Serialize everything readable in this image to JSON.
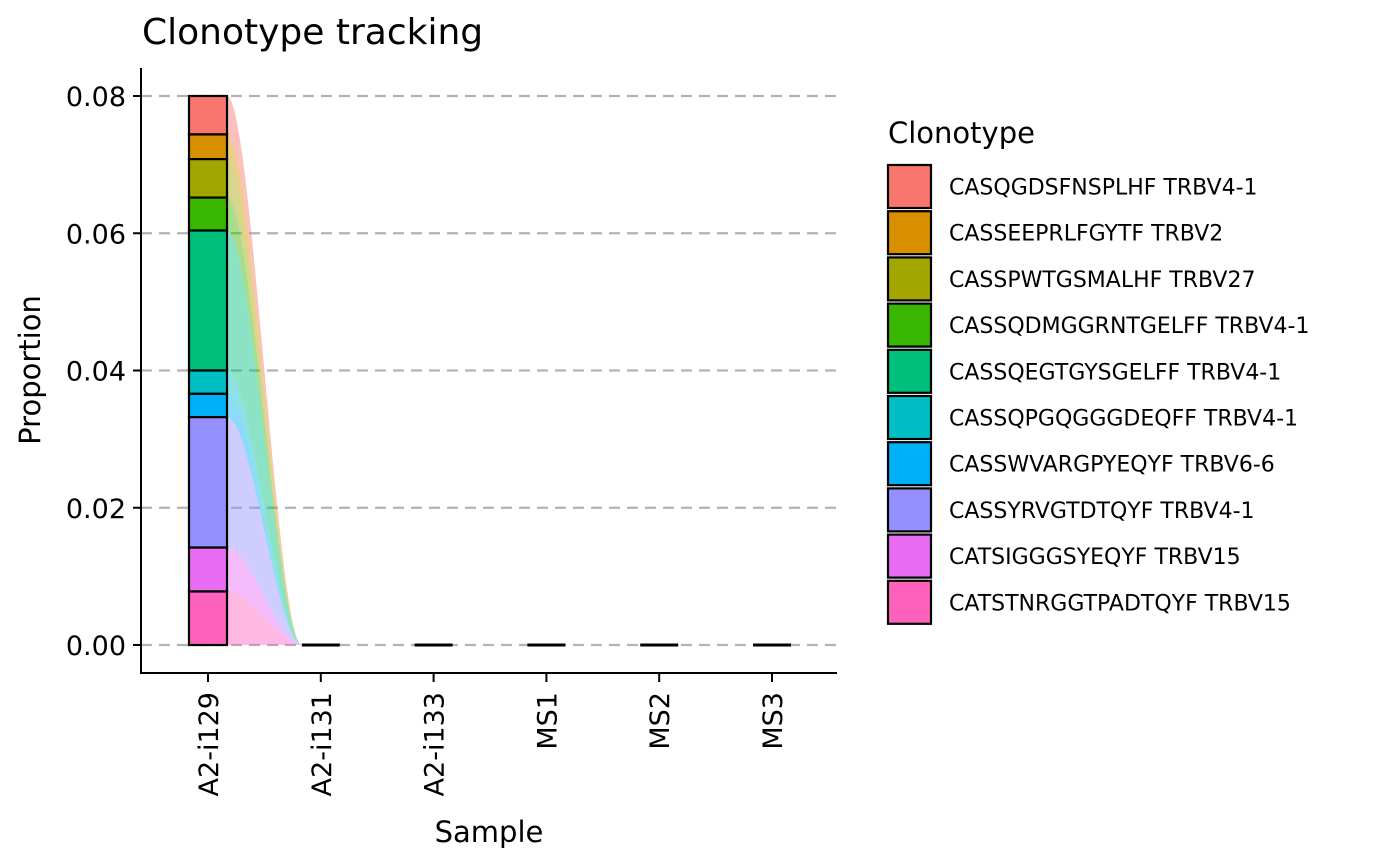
{
  "chart_data": {
    "type": "bar",
    "title": "Clonotype tracking",
    "xlabel": "Sample",
    "ylabel": "Proportion",
    "ylim": [
      0,
      0.08
    ],
    "yticks": [
      "0.00",
      "0.02",
      "0.04",
      "0.06",
      "0.08"
    ],
    "ytick_values": [
      0,
      0.02,
      0.04,
      0.06,
      0.08
    ],
    "categories": [
      "A2-i129",
      "A2-i131",
      "A2-i133",
      "MS1",
      "MS2",
      "MS3"
    ],
    "stacked": true,
    "grid": "horizontal dashed",
    "legend_position": "right",
    "legend_title": "Clonotype",
    "series": [
      {
        "name": "CASQGDSFNSPLHF TRBV4-1",
        "color": "#F8766D",
        "values": [
          0.0056,
          0,
          0,
          0,
          0,
          0
        ]
      },
      {
        "name": "CASSEEPRLFGYTF TRBV2",
        "color": "#D89000",
        "values": [
          0.0036,
          0,
          0,
          0,
          0,
          0
        ]
      },
      {
        "name": "CASSPWTGSMALHF TRBV27",
        "color": "#A3A500",
        "values": [
          0.0056,
          0,
          0,
          0,
          0,
          0
        ]
      },
      {
        "name": "CASSQDMGGRNTGELFF TRBV4-1",
        "color": "#39B600",
        "values": [
          0.0048,
          0,
          0,
          0,
          0,
          0
        ]
      },
      {
        "name": "CASSQEGTGYSGELFF TRBV4-1",
        "color": "#00BF7D",
        "values": [
          0.0204,
          0,
          0,
          0,
          0,
          0
        ]
      },
      {
        "name": "CASSQPGQGGGDEQFF TRBV4-1",
        "color": "#00BFC4",
        "values": [
          0.0034,
          0,
          0,
          0,
          0,
          0
        ]
      },
      {
        "name": "CASSWVARGPYEQYF TRBV6-6",
        "color": "#00B0F6",
        "values": [
          0.0034,
          0,
          0,
          0,
          0,
          0
        ]
      },
      {
        "name": "CASSYRVGTDTQYF TRBV4-1",
        "color": "#9590FF",
        "values": [
          0.019,
          0,
          0,
          0,
          0,
          0
        ]
      },
      {
        "name": "CATSIGGGSYEQYF TRBV15",
        "color": "#E76BF3",
        "values": [
          0.0064,
          0,
          0,
          0,
          0,
          0
        ]
      },
      {
        "name": "CATSTNRGGTPADTQYF TRBV15",
        "color": "#FF62BC",
        "values": [
          0.0078,
          0,
          0,
          0,
          0,
          0
        ]
      }
    ]
  }
}
